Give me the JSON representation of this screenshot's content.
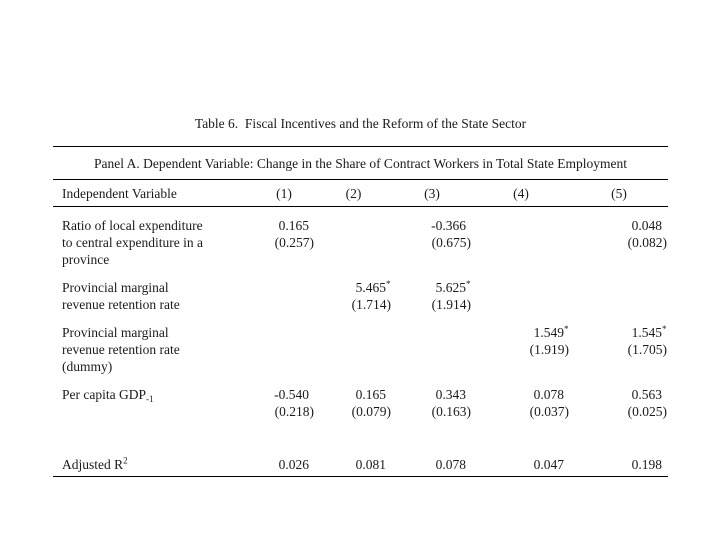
{
  "document": {
    "title": "Table 6.  Fiscal Incentives and the Reform of the State Sector",
    "panel_header": "Panel A. Dependent Variable: Change in the Share of Contract Workers in Total State Employment",
    "column_headers": [
      "Independent Variable",
      "(1)",
      "(2)",
      "(3)",
      "(4)",
      "(5)"
    ],
    "rows": [
      {
        "label_lines": [
          "Ratio of local expenditure",
          "to central expenditure in a",
          "province"
        ],
        "cells": [
          {
            "est": "0.165",
            "star": false,
            "se": "(0.257)"
          },
          null,
          {
            "est": "-0.366",
            "star": false,
            "se": "(0.675)"
          },
          null,
          {
            "est": "0.048",
            "star": false,
            "se": "(0.082)"
          }
        ]
      },
      {
        "label_lines": [
          "Provincial marginal",
          "revenue retention rate"
        ],
        "cells": [
          null,
          {
            "est": "5.465",
            "star": true,
            "se": "(1.714)"
          },
          {
            "est": "5.625",
            "star": true,
            "se": "(1.914)"
          },
          null,
          null
        ]
      },
      {
        "label_lines": [
          "Provincial marginal",
          "revenue retention rate",
          "(dummy)"
        ],
        "cells": [
          null,
          null,
          null,
          {
            "est": "1.549",
            "star": true,
            "se": "(1.919)"
          },
          {
            "est": "1.545",
            "star": true,
            "se": "(1.705)"
          }
        ]
      },
      {
        "label_lines": [
          "Per capita GDP"
        ],
        "label_sub": "-1",
        "cells": [
          {
            "est": "-0.540",
            "star": false,
            "se": "(0.218)"
          },
          {
            "est": "0.165",
            "star": false,
            "se": "(0.079)"
          },
          {
            "est": "0.343",
            "star": false,
            "se": "(0.163)"
          },
          {
            "est": "0.078",
            "star": false,
            "se": "(0.037)"
          },
          {
            "est": "0.563",
            "star": false,
            "se": "(0.025)"
          }
        ]
      }
    ],
    "footer": {
      "label": "Adjusted R",
      "label_sup": "2",
      "values": [
        "0.026",
        "0.081",
        "0.078",
        "0.047",
        "0.198"
      ]
    },
    "colors": {
      "text": "#1b1b1b",
      "rule": "#000000",
      "background": "#ffffff"
    }
  }
}
